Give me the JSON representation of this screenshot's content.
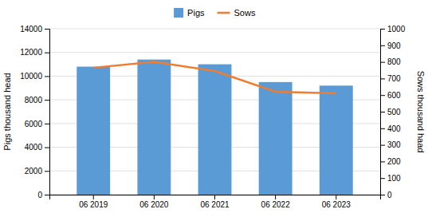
{
  "chart_data": {
    "type": "bar",
    "categories": [
      "06 2019",
      "06 2020",
      "06 2021",
      "06 2022",
      "06 2023"
    ],
    "series": [
      {
        "name": "Pigs",
        "type": "bar",
        "color": "#5B9BD5",
        "values": [
          10800,
          11400,
          11000,
          9500,
          9200
        ]
      },
      {
        "name": "Sows",
        "type": "line",
        "color": "#ED7D31",
        "axis": "y2",
        "values": [
          765,
          800,
          745,
          620,
          610
        ]
      }
    ],
    "ylabel": "Pigs thousand head",
    "y2label": "Sows thousand haad",
    "ylim": [
      0,
      14000
    ],
    "yticks": [
      0,
      2000,
      4000,
      6000,
      8000,
      10000,
      12000,
      14000
    ],
    "y2lim": [
      0,
      1000
    ],
    "y2ticks": [
      0,
      100,
      200,
      300,
      400,
      500,
      600,
      700,
      800,
      900,
      1000
    ],
    "grid": true,
    "legend": "top"
  }
}
